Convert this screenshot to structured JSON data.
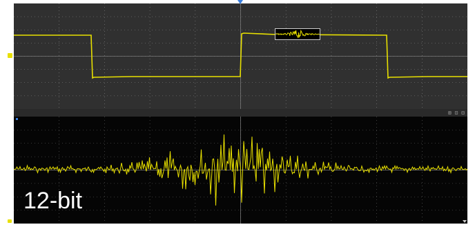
{
  "display": {
    "bit_depth_label": "12-bit",
    "zoom_controls_text": "⊞ ⊡ ⊟",
    "trace_color": "#e8e000",
    "upper_background": "#303030",
    "lower_background": "#050505",
    "trigger_marker_color": "#3a7fe0"
  }
}
